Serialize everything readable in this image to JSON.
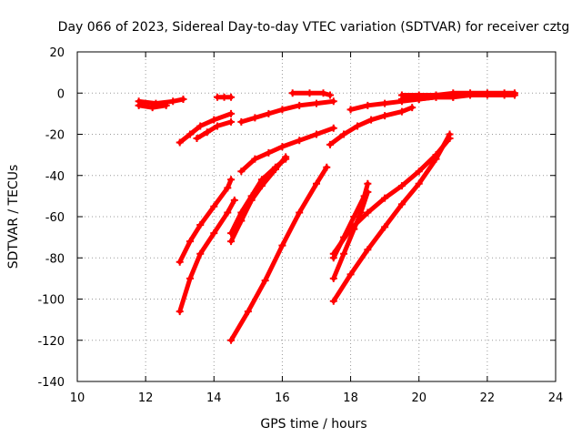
{
  "chart_data": {
    "type": "scatter",
    "title": "Day 066 of 2023, Sidereal Day-to-day VTEC variation (SDTVAR) for receiver cztg",
    "xlabel": "GPS time / hours",
    "ylabel": "SDTVAR / TECUs",
    "xlim": [
      10,
      24
    ],
    "ylim": [
      -140,
      20
    ],
    "xticks": [
      10,
      12,
      14,
      16,
      18,
      20,
      22,
      24
    ],
    "yticks": [
      -140,
      -120,
      -100,
      -80,
      -60,
      -40,
      -20,
      0,
      20
    ],
    "grid": true,
    "marker_color": "#ff0000",
    "series": [
      {
        "x": [
          11.8,
          12.3,
          12.8,
          13.1
        ],
        "y": [
          -4,
          -5,
          -4,
          -3
        ]
      },
      {
        "x": [
          11.8,
          12.2,
          12.6
        ],
        "y": [
          -6,
          -7,
          -6
        ]
      },
      {
        "x": [
          14.1,
          14.3,
          14.5
        ],
        "y": [
          -2,
          -2,
          -2
        ]
      },
      {
        "x": [
          13.0,
          13.3,
          13.6,
          14.0,
          14.5
        ],
        "y": [
          -24,
          -20,
          -16,
          -13,
          -10
        ]
      },
      {
        "x": [
          13.5,
          13.8,
          14.1,
          14.5
        ],
        "y": [
          -22,
          -19,
          -16,
          -14
        ]
      },
      {
        "x": [
          14.8,
          15.2,
          15.6,
          16.0,
          16.5,
          17.0,
          17.5
        ],
        "y": [
          -14,
          -12,
          -10,
          -8,
          -6,
          -5,
          -4
        ]
      },
      {
        "x": [
          16.3,
          16.8,
          17.2,
          17.4
        ],
        "y": [
          0,
          0,
          0,
          -1
        ]
      },
      {
        "x": [
          13.0,
          13.3,
          13.6,
          14.0,
          14.4,
          14.5
        ],
        "y": [
          -82,
          -72,
          -64,
          -55,
          -46,
          -42
        ]
      },
      {
        "x": [
          13.0,
          13.3,
          13.6,
          14.0,
          14.4,
          14.6
        ],
        "y": [
          -106,
          -90,
          -78,
          -68,
          -58,
          -52
        ]
      },
      {
        "x": [
          14.5,
          14.8,
          15.1,
          15.4,
          15.8,
          16.1
        ],
        "y": [
          -72,
          -62,
          -52,
          -45,
          -37,
          -31
        ]
      },
      {
        "x": [
          14.5,
          14.8,
          15.1,
          15.4,
          15.8,
          16.1
        ],
        "y": [
          -68,
          -58,
          -50,
          -42,
          -36,
          -32
        ]
      },
      {
        "x": [
          14.8,
          15.2,
          15.6,
          16.0,
          16.5,
          17.0,
          17.5
        ],
        "y": [
          -38,
          -32,
          -29,
          -26,
          -23,
          -20,
          -17
        ]
      },
      {
        "x": [
          14.5,
          15.0,
          15.5,
          16.0,
          16.5,
          17.0,
          17.3
        ],
        "y": [
          -120,
          -106,
          -91,
          -74,
          -58,
          -44,
          -36
        ]
      },
      {
        "x": [
          17.4,
          17.8,
          18.2,
          18.6,
          19.0,
          19.5,
          19.8
        ],
        "y": [
          -25,
          -20,
          -16,
          -13,
          -11,
          -9,
          -7
        ]
      },
      {
        "x": [
          18.0,
          18.5,
          19.0,
          19.5,
          20.0,
          20.5,
          21.0
        ],
        "y": [
          -8,
          -6,
          -5,
          -4,
          -3,
          -2,
          -2
        ]
      },
      {
        "x": [
          19.5,
          20.0,
          20.5,
          21.0,
          21.5,
          22.0,
          22.5,
          22.8
        ],
        "y": [
          -1,
          -1,
          -1,
          0,
          0,
          0,
          0,
          0
        ]
      },
      {
        "x": [
          19.5,
          20.0,
          20.5,
          21.0,
          21.5,
          22.0,
          22.5,
          22.8
        ],
        "y": [
          -3,
          -3,
          -2,
          -2,
          -1,
          -1,
          -1,
          -1
        ]
      },
      {
        "x": [
          17.5,
          17.8,
          18.1,
          18.4,
          18.5
        ],
        "y": [
          -80,
          -70,
          -60,
          -50,
          -44
        ]
      },
      {
        "x": [
          17.5,
          17.8,
          18.1,
          18.3,
          18.5
        ],
        "y": [
          -90,
          -78,
          -66,
          -58,
          -48
        ]
      },
      {
        "x": [
          17.5,
          18.0,
          18.5,
          19.0,
          19.5,
          20.0,
          20.5,
          20.9
        ],
        "y": [
          -78,
          -66,
          -58,
          -51,
          -45,
          -38,
          -30,
          -22
        ]
      },
      {
        "x": [
          17.5,
          18.0,
          18.5,
          19.0,
          19.5,
          20.0,
          20.5,
          20.9
        ],
        "y": [
          -101,
          -88,
          -76,
          -65,
          -54,
          -44,
          -32,
          -20
        ]
      }
    ]
  }
}
